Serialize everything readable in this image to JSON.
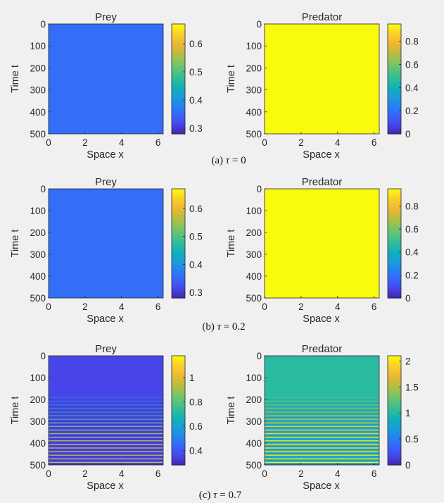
{
  "figure": {
    "captions": [
      {
        "label": "(a)",
        "symbol": "τ",
        "eq": "=",
        "value": "0"
      },
      {
        "label": "(b)",
        "symbol": "τ",
        "eq": "=",
        "value": "0.2"
      },
      {
        "label": "(c)",
        "symbol": "τ",
        "eq": "=",
        "value": "0.7"
      }
    ]
  },
  "colors": {
    "parula": [
      "#3e26a8",
      "#4744e7",
      "#3a63fb",
      "#2581f0",
      "#1d9ad9",
      "#0fafbb",
      "#2cbb9c",
      "#58c37d",
      "#8cc35a",
      "#c3bb3c",
      "#f1b935",
      "#fbd02a",
      "#f9fb0e"
    ]
  },
  "chart_data": [
    {
      "id": "a-prey",
      "type": "heatmap",
      "title": "Prey",
      "xlabel": "Space x",
      "ylabel": "Time t",
      "xlim": [
        0,
        6.2832
      ],
      "ylim": [
        0,
        500
      ],
      "xticks": [
        0,
        2,
        4,
        6
      ],
      "yticks": [
        0,
        100,
        200,
        300,
        400,
        500
      ],
      "clim": [
        0.28,
        0.67
      ],
      "cticks": [
        0.3,
        0.4,
        0.5,
        0.6
      ],
      "pattern": "uniform",
      "value": 0.357
    },
    {
      "id": "a-pred",
      "type": "heatmap",
      "title": "Predator",
      "xlabel": "Space x",
      "ylabel": "Time t",
      "xlim": [
        0,
        6.2832
      ],
      "ylim": [
        0,
        500
      ],
      "xticks": [
        0,
        2,
        4,
        6
      ],
      "yticks": [
        0,
        100,
        200,
        300,
        400,
        500
      ],
      "clim": [
        0,
        0.95
      ],
      "cticks": [
        0,
        0.2,
        0.4,
        0.6,
        0.8
      ],
      "pattern": "uniform",
      "value": 0.95
    },
    {
      "id": "b-prey",
      "type": "heatmap",
      "title": "Prey",
      "xlabel": "Space x",
      "ylabel": "Time t",
      "xlim": [
        0,
        6.2832
      ],
      "ylim": [
        0,
        500
      ],
      "xticks": [
        0,
        2,
        4,
        6
      ],
      "yticks": [
        0,
        100,
        200,
        300,
        400,
        500
      ],
      "clim": [
        0.28,
        0.67
      ],
      "cticks": [
        0.3,
        0.4,
        0.5,
        0.6
      ],
      "pattern": "uniform",
      "value": 0.357
    },
    {
      "id": "b-pred",
      "type": "heatmap",
      "title": "Predator",
      "xlabel": "Space x",
      "ylabel": "Time t",
      "xlim": [
        0,
        6.2832
      ],
      "ylim": [
        0,
        500
      ],
      "xticks": [
        0,
        2,
        4,
        6
      ],
      "yticks": [
        0,
        100,
        200,
        300,
        400,
        500
      ],
      "clim": [
        0,
        0.95
      ],
      "cticks": [
        0,
        0.2,
        0.4,
        0.6,
        0.8
      ],
      "pattern": "uniform",
      "value": 0.95
    },
    {
      "id": "c-prey",
      "type": "heatmap",
      "title": "Prey",
      "xlabel": "Space x",
      "ylabel": "Time t",
      "xlim": [
        0,
        6.2832
      ],
      "ylim": [
        0,
        500
      ],
      "xticks": [
        0,
        2,
        4,
        6
      ],
      "yticks": [
        0,
        100,
        200,
        300,
        400,
        500
      ],
      "clim": [
        0.28,
        1.18
      ],
      "cticks": [
        0.4,
        0.6,
        0.8,
        1
      ],
      "pattern": "oscillating",
      "value": 0.357,
      "onset_t": 190,
      "stripe_high": [
        0.62,
        0.95
      ],
      "stripe_low": 0.32
    },
    {
      "id": "c-pred",
      "type": "heatmap",
      "title": "Predator",
      "xlabel": "Space x",
      "ylabel": "Time t",
      "xlim": [
        0,
        6.2832
      ],
      "ylim": [
        0,
        500
      ],
      "xticks": [
        0,
        2,
        4,
        6
      ],
      "yticks": [
        0,
        100,
        200,
        300,
        400,
        500
      ],
      "clim": [
        0,
        2.1
      ],
      "cticks": [
        0,
        0.5,
        1,
        1.5,
        2
      ],
      "pattern": "oscillating",
      "value": 1.03,
      "onset_t": 190,
      "stripe_high": [
        1.45,
        2.0
      ],
      "stripe_low": 0.55
    }
  ]
}
